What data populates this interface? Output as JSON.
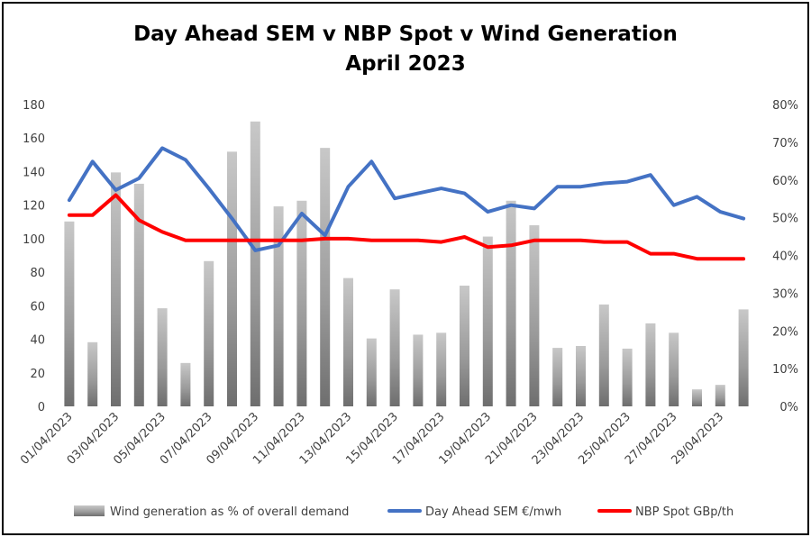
{
  "chart_data": {
    "type": "bar+line",
    "title_line1": "Day Ahead SEM v NBP Spot v Wind Generation",
    "title_line2": "April 2023",
    "x": [
      "01/04/2023",
      "02/04/2023",
      "03/04/2023",
      "04/04/2023",
      "05/04/2023",
      "06/04/2023",
      "07/04/2023",
      "08/04/2023",
      "09/04/2023",
      "10/04/2023",
      "11/04/2023",
      "12/04/2023",
      "13/04/2023",
      "14/04/2023",
      "15/04/2023",
      "16/04/2023",
      "17/04/2023",
      "18/04/2023",
      "19/04/2023",
      "20/04/2023",
      "21/04/2023",
      "22/04/2023",
      "23/04/2023",
      "24/04/2023",
      "25/04/2023",
      "26/04/2023",
      "27/04/2023",
      "28/04/2023",
      "29/04/2023",
      "30/04/2023"
    ],
    "x_tick_labels": [
      "01/04/2023",
      "03/04/2023",
      "05/04/2023",
      "07/04/2023",
      "09/04/2023",
      "11/04/2023",
      "13/04/2023",
      "15/04/2023",
      "17/04/2023",
      "19/04/2023",
      "21/04/2023",
      "23/04/2023",
      "25/04/2023",
      "27/04/2023",
      "29/04/2023"
    ],
    "y_left_ticks": [
      "0",
      "20",
      "40",
      "60",
      "80",
      "100",
      "120",
      "140",
      "160",
      "180"
    ],
    "y_right_ticks": [
      "0%",
      "10%",
      "20%",
      "30%",
      "40%",
      "50%",
      "60%",
      "70%",
      "80%"
    ],
    "ylim_left": [
      0,
      180
    ],
    "ylim_right": [
      0,
      0.8
    ],
    "grid": false,
    "legend_position": "bottom",
    "series": [
      {
        "name": "Wind generation as % of overall demand",
        "kind": "bar",
        "axis": "right",
        "color": "#9a9a9a",
        "values": [
          0.49,
          0.17,
          0.62,
          0.59,
          0.26,
          0.115,
          0.385,
          0.675,
          0.755,
          0.53,
          0.545,
          0.685,
          0.34,
          0.18,
          0.31,
          0.19,
          0.195,
          0.32,
          0.45,
          0.545,
          0.48,
          0.155,
          0.16,
          0.27,
          0.153,
          0.22,
          0.195,
          0.045,
          0.057,
          0.257
        ]
      },
      {
        "name": "Day Ahead SEM €/mwh",
        "kind": "line",
        "axis": "left",
        "color": "#4472c4",
        "values": [
          123,
          146,
          129,
          136,
          154,
          147,
          130,
          112,
          93,
          96,
          115,
          102,
          131,
          146,
          124,
          127,
          130,
          127,
          116,
          120,
          118,
          131,
          131,
          133,
          134,
          138,
          120,
          125,
          116,
          112
        ]
      },
      {
        "name": "NBP Spot GBp/th",
        "kind": "line",
        "axis": "left",
        "color": "#ff0000",
        "values": [
          114,
          114,
          126,
          111,
          104,
          99,
          99,
          99,
          99,
          99,
          99,
          100,
          100,
          99,
          99,
          99,
          98,
          101,
          95,
          96,
          99,
          99,
          99,
          98,
          98,
          91,
          91,
          88,
          88,
          88
        ]
      }
    ]
  }
}
